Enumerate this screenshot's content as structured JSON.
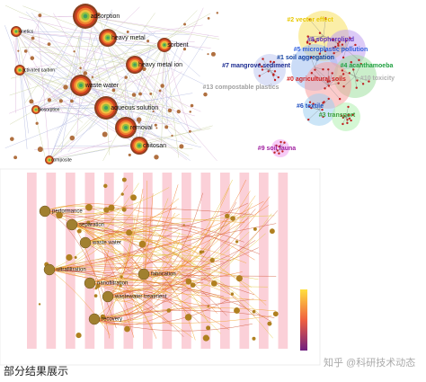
{
  "network": {
    "labels": [
      "adsorption",
      "heavy metal",
      "sorbent",
      "heavy metal ion",
      "waste water",
      "aqueous solution",
      "removal",
      "chitosan",
      "composite",
      "activated carbon",
      "kinetics",
      "biosorption"
    ]
  },
  "clusters": {
    "labels": [
      "#2 vector effect",
      "#8 sophorolipid",
      "#5 microplastic pollution",
      "#1 soil aggregation",
      "#7 mangrove sediment",
      "#0 agricultural soils",
      "#4 acanthamoeba",
      "#13 compostable plastics",
      "#10 toxicity",
      "#6 textile",
      "#3 transport",
      "#9 soil fauna"
    ]
  },
  "timeline": {
    "labels": [
      "separation",
      "performance",
      "waste water",
      "ultrafiltration",
      "nanofiltration",
      "fabrication",
      "wastewater treatment",
      "recovery"
    ]
  },
  "caption": "部分结果展示",
  "watermark": "知乎 @科研技术动态"
}
